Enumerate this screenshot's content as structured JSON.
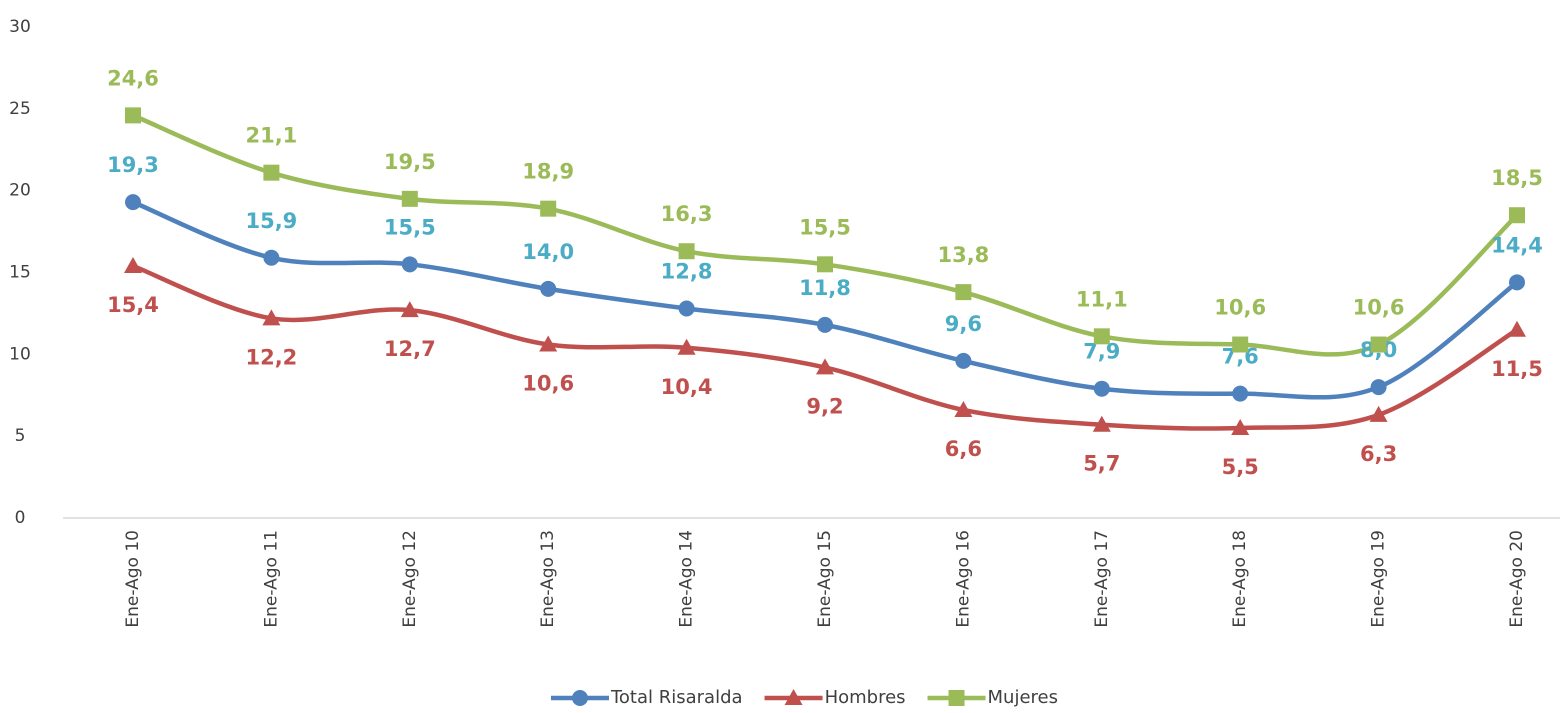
{
  "chart_data": {
    "type": "line",
    "categories": [
      "Ene-Ago 10",
      "Ene-Ago 11",
      "Ene-Ago 12",
      "Ene-Ago 13",
      "Ene-Ago 14",
      "Ene-Ago 15",
      "Ene-Ago 16",
      "Ene-Ago 17",
      "Ene-Ago 18",
      "Ene-Ago 19",
      "Ene-Ago 20"
    ],
    "series": [
      {
        "name": "Total Risaralda",
        "color": "#4f81bd",
        "label_color": "#4bacc6",
        "marker": "circle",
        "label_position": "above",
        "values": [
          19.3,
          15.9,
          15.5,
          14.0,
          12.8,
          11.8,
          9.6,
          7.9,
          7.6,
          8.0,
          14.4
        ],
        "value_labels": [
          "19,3",
          "15,9",
          "15,5",
          "14,0",
          "12,8",
          "11,8",
          "9,6",
          "7,9",
          "7,6",
          "8,0",
          "14,4"
        ]
      },
      {
        "name": "Hombres",
        "color": "#c0504d",
        "label_color": "#c0504d",
        "marker": "triangle",
        "label_position": "below",
        "values": [
          15.4,
          12.2,
          12.7,
          10.6,
          10.4,
          9.2,
          6.6,
          5.7,
          5.5,
          6.3,
          11.5
        ],
        "value_labels": [
          "15,4",
          "12,2",
          "12,7",
          "10,6",
          "10,4",
          "9,2",
          "6,6",
          "5,7",
          "5,5",
          "6,3",
          "11,5"
        ]
      },
      {
        "name": "Mujeres",
        "color": "#9bbb59",
        "label_color": "#9bbb59",
        "marker": "square",
        "label_position": "above",
        "values": [
          24.6,
          21.1,
          19.5,
          18.9,
          16.3,
          15.5,
          13.8,
          11.1,
          10.6,
          10.6,
          18.5
        ],
        "value_labels": [
          "24,6",
          "21,1",
          "19,5",
          "18,9",
          "16,3",
          "15,5",
          "13,8",
          "11,1",
          "10,6",
          "10,6",
          "18,5"
        ]
      }
    ],
    "ylim": [
      0,
      30
    ],
    "yticks": [
      0,
      5,
      10,
      15,
      20,
      25,
      30
    ],
    "grid": false,
    "legend": "bottom",
    "smooth": true
  }
}
